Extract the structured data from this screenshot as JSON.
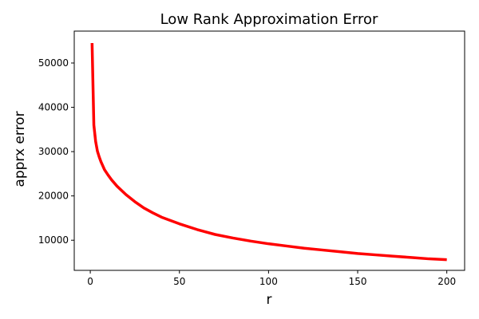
{
  "chart_data": {
    "type": "line",
    "title": "Low Rank Approximation Error",
    "xlabel": "r",
    "ylabel": "apprx error",
    "xlim": [
      -9,
      210
    ],
    "ylim": [
      3200,
      57200
    ],
    "xticks": [
      0,
      50,
      100,
      150,
      200
    ],
    "yticks": [
      10000,
      20000,
      30000,
      40000,
      50000
    ],
    "xtick_labels": [
      "0",
      "50",
      "100",
      "150",
      "200"
    ],
    "ytick_labels": [
      "10000",
      "20000",
      "30000",
      "40000",
      "50000"
    ],
    "grid": false,
    "legend": "none",
    "series": [
      {
        "color": "#ff0000",
        "x": [
          1,
          2,
          3,
          4,
          5,
          6,
          8,
          10,
          12,
          15,
          20,
          25,
          30,
          35,
          40,
          50,
          60,
          70,
          80,
          90,
          100,
          110,
          120,
          130,
          140,
          150,
          160,
          170,
          180,
          190,
          200
        ],
        "y": [
          54500,
          36000,
          32300,
          30100,
          28800,
          27700,
          25900,
          24700,
          23600,
          22200,
          20300,
          18700,
          17300,
          16200,
          15200,
          13700,
          12400,
          11300,
          10500,
          9800,
          9200,
          8700,
          8200,
          7800,
          7400,
          7000,
          6700,
          6400,
          6100,
          5800,
          5600
        ]
      }
    ]
  }
}
